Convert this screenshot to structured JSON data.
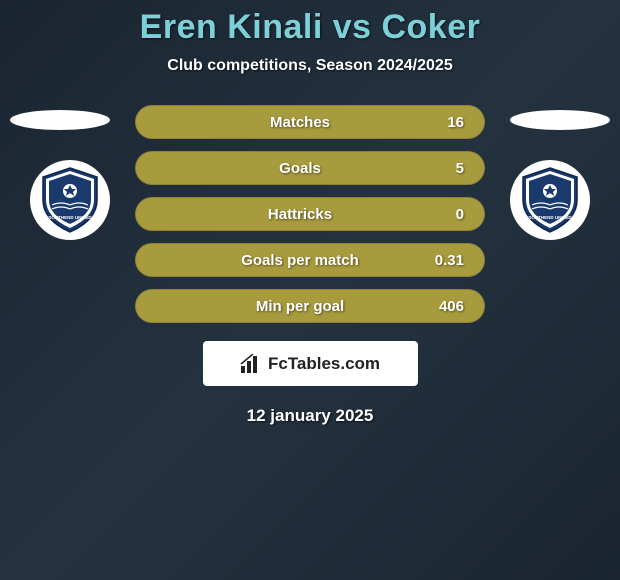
{
  "title": "Eren Kinali vs Coker",
  "subtitle": "Club competitions, Season 2024/2025",
  "date": "12 january 2025",
  "logo_text": "FcTables.com",
  "bar_color": "#a89b3e",
  "title_color": "#7dcfd8",
  "background_gradient": [
    "#1a2530",
    "#243240",
    "#1a2530"
  ],
  "stats": [
    {
      "label": "Matches",
      "value": "16"
    },
    {
      "label": "Goals",
      "value": "5"
    },
    {
      "label": "Hattricks",
      "value": "0"
    },
    {
      "label": "Goals per match",
      "value": "0.31"
    },
    {
      "label": "Min per goal",
      "value": "406"
    }
  ],
  "club": {
    "name": "Southend United",
    "badge_bg": "#ffffff",
    "badge_primary": "#1a3a6e",
    "badge_text": "SOUTHEND UNITED"
  }
}
